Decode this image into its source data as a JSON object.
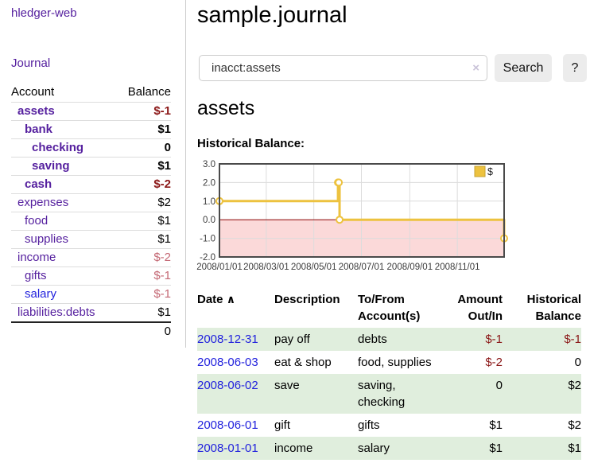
{
  "sidebar": {
    "app_title": "hledger-web",
    "journal_label": "Journal",
    "account_header": "Account",
    "balance_header": "Balance",
    "accounts": [
      {
        "label": "assets",
        "level": 1,
        "bold": true,
        "link_color": "purple",
        "balance": "$-1",
        "tone": "neg-strong"
      },
      {
        "label": "bank",
        "level": 2,
        "bold": true,
        "link_color": "purple",
        "balance": "$1",
        "tone": ""
      },
      {
        "label": "checking",
        "level": 3,
        "bold": true,
        "link_color": "purple",
        "balance": "0",
        "tone": ""
      },
      {
        "label": "saving",
        "level": 3,
        "bold": true,
        "link_color": "purple",
        "balance": "$1",
        "tone": ""
      },
      {
        "label": "cash",
        "level": 2,
        "bold": true,
        "link_color": "purple",
        "balance": "$-2",
        "tone": "neg-strong"
      },
      {
        "label": "expenses",
        "level": 1,
        "bold": false,
        "link_color": "purple",
        "balance": "$2",
        "tone": ""
      },
      {
        "label": "food",
        "level": 2,
        "bold": false,
        "link_color": "purple",
        "balance": "$1",
        "tone": ""
      },
      {
        "label": "supplies",
        "level": 2,
        "bold": false,
        "link_color": "purple",
        "balance": "$1",
        "tone": ""
      },
      {
        "label": "income",
        "level": 1,
        "bold": false,
        "link_color": "purple",
        "balance": "$-2",
        "tone": "neg-soft"
      },
      {
        "label": "gifts",
        "level": 2,
        "bold": false,
        "link_color": "purple",
        "balance": "$-1",
        "tone": "neg-soft"
      },
      {
        "label": "salary",
        "level": 2,
        "bold": false,
        "link_color": "blue",
        "balance": "$-1",
        "tone": "neg-soft"
      },
      {
        "label": "liabilities:debts",
        "level": 1,
        "bold": false,
        "link_color": "purple",
        "balance": "$1",
        "tone": ""
      }
    ],
    "total": "0"
  },
  "main": {
    "title": "sample.journal",
    "search": {
      "value": "inacct:assets",
      "clear_icon": "×",
      "button_label": "Search",
      "help_label": "?"
    },
    "account_heading": "assets",
    "chart_heading": "Historical Balance:"
  },
  "chart_data": {
    "type": "line",
    "subtype": "step",
    "title": "Historical Balance:",
    "legend": {
      "label": "$",
      "position": "top-right"
    },
    "xrange": [
      "2008-01-01",
      "2008-12-31"
    ],
    "ylim": [
      -2,
      3
    ],
    "yticks": [
      3.0,
      2.0,
      1.0,
      0.0,
      -1.0,
      -2.0
    ],
    "ytick_labels": [
      "3.0",
      "2.0",
      "1.0",
      "0.0",
      "-1.0",
      "-2.0"
    ],
    "xticks": [
      "2008-01-01",
      "2008-03-01",
      "2008-05-01",
      "2008-07-01",
      "2008-09-01",
      "2008-11-01"
    ],
    "xtick_labels": [
      "2008/01/01",
      "2008/03/01",
      "2008/05/01",
      "2008/07/01",
      "2008/09/01",
      "2008/11/01"
    ],
    "points": [
      [
        "2008-01-01",
        1
      ],
      [
        "2008-06-01",
        2
      ],
      [
        "2008-06-02",
        2
      ],
      [
        "2008-06-03",
        0
      ],
      [
        "2008-12-31",
        -1
      ]
    ],
    "grid": true,
    "negative_region_shaded": true,
    "colors": {
      "line": "#edc23f",
      "point_fill": "#ffffff",
      "negative_region": "#fbd9d9",
      "zero_line": "#8b0000",
      "grid": "#dcdcdc",
      "border": "#4a4a4a",
      "text": "#3c3c3c"
    }
  },
  "transactions": {
    "headers": {
      "date": "Date",
      "sort_icon": "∧",
      "description": "Description",
      "tofrom": "To/From Account(s)",
      "amount": "Amount Out/In",
      "balance": "Historical Balance"
    },
    "rows": [
      {
        "date": "2008-12-31",
        "description": "pay off",
        "accounts": "debts",
        "amount": "$-1",
        "amount_neg": true,
        "balance": "$-1",
        "balance_neg": true
      },
      {
        "date": "2008-06-03",
        "description": "eat & shop",
        "accounts": "food, supplies",
        "amount": "$-2",
        "amount_neg": true,
        "balance": "0",
        "balance_neg": false
      },
      {
        "date": "2008-06-02",
        "description": "save",
        "accounts": "saving, checking",
        "amount": "0",
        "amount_neg": false,
        "balance": "$2",
        "balance_neg": false
      },
      {
        "date": "2008-06-01",
        "description": "gift",
        "accounts": "gifts",
        "amount": "$1",
        "amount_neg": false,
        "balance": "$2",
        "balance_neg": false
      },
      {
        "date": "2008-01-01",
        "description": "income",
        "accounts": "salary",
        "amount": "$1",
        "amount_neg": false,
        "balance": "$1",
        "balance_neg": false
      }
    ]
  },
  "colors": {
    "link_purple": "#56219f",
    "link_blue": "#2222dd",
    "neg_strong": "#8b1717",
    "neg_soft": "#c46874",
    "row_green": "#e0eedd",
    "button_bg": "#ececec"
  }
}
